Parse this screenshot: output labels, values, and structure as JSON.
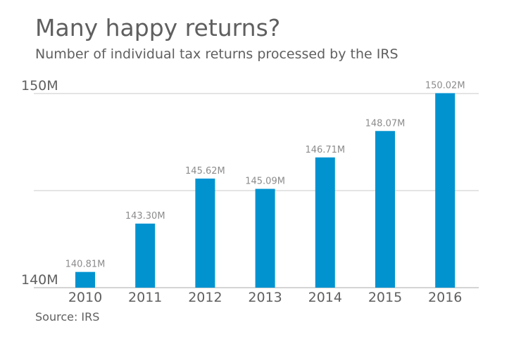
{
  "chart_data": {
    "type": "bar",
    "title": "Many happy returns?",
    "subtitle": "Number of individual tax returns processed by the IRS",
    "source": "Source: IRS",
    "categories": [
      "2010",
      "2011",
      "2012",
      "2013",
      "2014",
      "2015",
      "2016"
    ],
    "values": [
      140.81,
      143.3,
      145.62,
      145.09,
      146.71,
      148.07,
      150.02
    ],
    "data_labels": [
      "140.81M",
      "143.30M",
      "145.62M",
      "145.09M",
      "146.71M",
      "148.07M",
      "150.02M"
    ],
    "ylim": [
      140,
      150
    ],
    "yticks": [
      140,
      145,
      150
    ],
    "ytick_labels": [
      "140M",
      "",
      "150M"
    ],
    "grid": true,
    "bar_color": "#0093d0",
    "xlabel": "",
    "ylabel": ""
  }
}
